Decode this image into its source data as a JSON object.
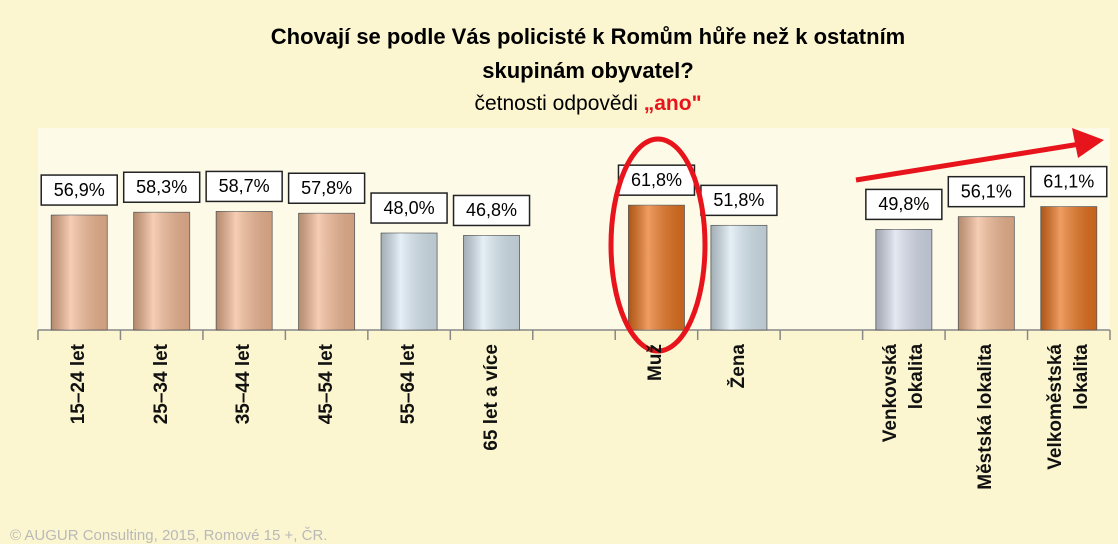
{
  "chart_data": {
    "type": "bar",
    "title": [
      "Chovají se podle Vás policisté k Romům hůře než k ostatním",
      "skupinám obyvatel?"
    ],
    "subtitle": "četnosti odpovědi ",
    "subtitle_highlight": "„ano\"",
    "categories": [
      "15–24 let",
      "25–34 let",
      "35–44 let",
      "45–54 let",
      "55–64 let",
      "65 let a více",
      null,
      "Muž",
      "Žena",
      null,
      "Venkovská\nlokalita",
      "Městská lokalita",
      "Velkoměstská\nlokalita"
    ],
    "values": [
      56.9,
      58.3,
      58.7,
      57.8,
      48.0,
      46.8,
      null,
      61.8,
      51.8,
      null,
      49.8,
      56.1,
      61.1
    ],
    "value_labels": [
      "56,9%",
      "58,3%",
      "58,7%",
      "57,8%",
      "48,0%",
      "46,8%",
      null,
      "61,8%",
      "51,8%",
      null,
      "49,8%",
      "56,1%",
      "61,1%"
    ],
    "colors": [
      "#f2b994",
      "#f2b994",
      "#f2b994",
      "#f2b994",
      "#d9e9f2",
      "#d9e9f2",
      null,
      "#e8731e",
      "#d9e9f2",
      null,
      "#d8dfee",
      "#f2b994",
      "#e8731e"
    ],
    "ylim": [
      0,
      100
    ],
    "footer": "© AUGUR Consulting, 2015, Romové 15 +, ČR."
  }
}
